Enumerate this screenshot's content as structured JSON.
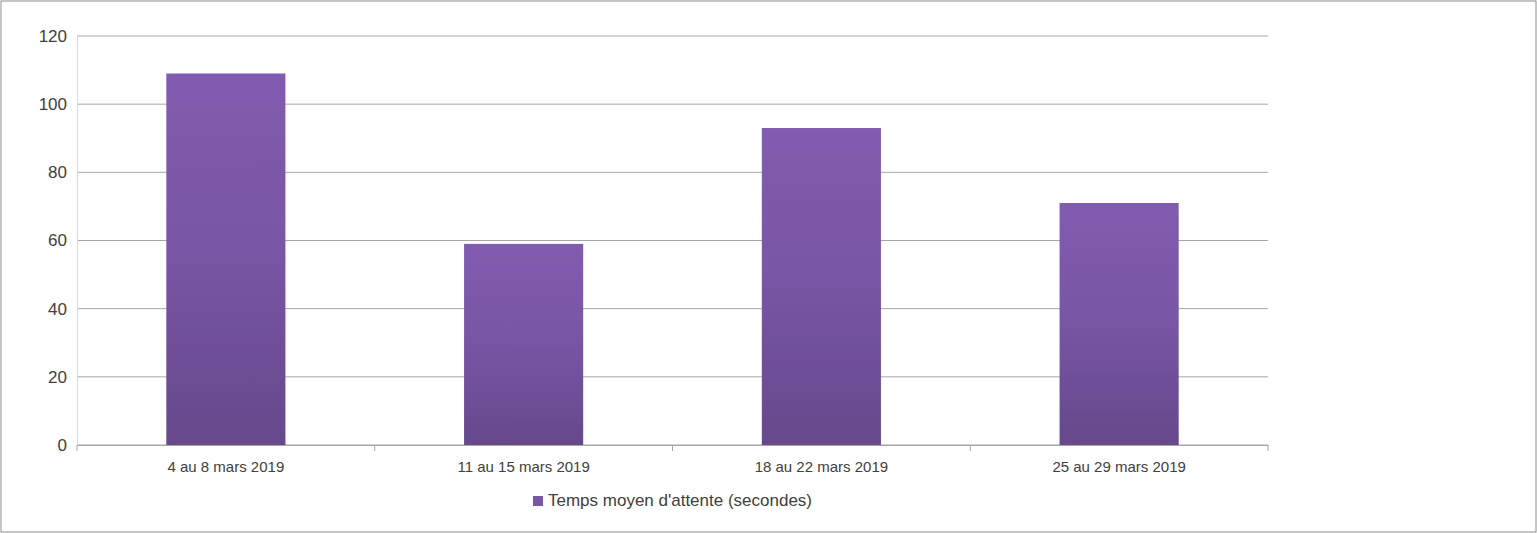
{
  "chart_data": {
    "type": "bar",
    "categories": [
      "4 au 8 mars 2019",
      "11 au 15 mars 2019",
      "18 au 22 mars 2019",
      "25 au 29 mars 2019"
    ],
    "series": [
      {
        "name": "Temps moyen d'attente (secondes)",
        "color": "#7a56a6",
        "values": [
          109,
          59,
          93,
          71
        ]
      }
    ],
    "ylim": [
      0,
      120
    ],
    "yticks": [
      0,
      20,
      40,
      60,
      80,
      100,
      120
    ],
    "grid": true,
    "legend": "bottom"
  }
}
